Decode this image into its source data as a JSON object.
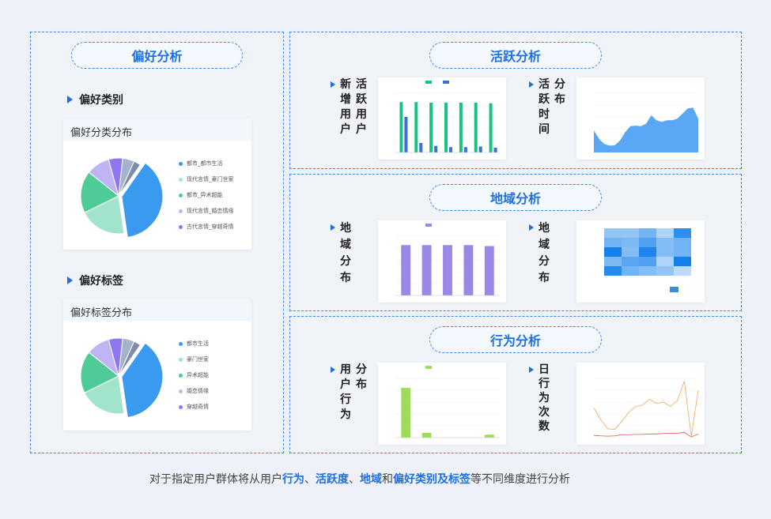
{
  "preference": {
    "title": "偏好分析",
    "category": {
      "section": "偏好类别",
      "card_title": "偏好分类分布",
      "legend": [
        "都市_都市生活",
        "现代言情_豪门世家",
        "都市_异术超能",
        "现代言情_婚恋情缘",
        "古代言情_穿越奇情"
      ]
    },
    "tags": {
      "section": "偏好标签",
      "card_title": "偏好标签分布",
      "legend": [
        "都市生活",
        "豪门世家",
        "异术超能",
        "婚恋情缘",
        "穿越奇情"
      ]
    }
  },
  "activity": {
    "title": "活跃分析",
    "label_a": "新增用户",
    "label_b": "活跃用户",
    "label_c": "活跃时间",
    "label_d": "分布"
  },
  "region": {
    "title": "地域分析",
    "label_a": "地域分布",
    "label_b": "地域分布"
  },
  "behavior": {
    "title": "行为分析",
    "label_a": "用户行为",
    "label_b": "分布",
    "label_c": "日行为次数"
  },
  "footer": {
    "p1": "对于指定用户群体将从用户",
    "h1": "行为",
    "p2": "、",
    "h2": "活跃度",
    "p3": "、",
    "h3": "地域",
    "p4": "和",
    "h4": "偏好类别及标签",
    "p5": "等不同维度进行分析"
  },
  "colors": {
    "accent": "#1e6fe0",
    "pie": [
      "#3a9af0",
      "#a2e3cb",
      "#4fcb97",
      "#c0b4f5",
      "#8e77ef",
      "#a5b2cd",
      "#7f8ea8"
    ]
  },
  "chart_data": [
    {
      "type": "pie",
      "name": "偏好分类分布",
      "values": [
        38,
        20,
        18,
        10,
        6,
        5,
        3
      ]
    },
    {
      "type": "pie",
      "name": "偏好标签分布",
      "values": [
        38,
        20,
        18,
        10,
        6,
        5,
        3
      ]
    },
    {
      "type": "bar",
      "series": [
        {
          "values": [
            85000,
            85000,
            84000,
            84000,
            84000,
            84000,
            83000
          ],
          "color": "#17c47f"
        },
        {
          "values": [
            60000,
            16000,
            11000,
            9000,
            9000,
            10000,
            8000
          ],
          "color": "#3a6fd8"
        }
      ],
      "ylim": [
        0,
        100000
      ]
    },
    {
      "type": "area",
      "values": [
        13000,
        8000,
        5000,
        4000,
        4200,
        7000,
        12000,
        15500,
        15800,
        15500,
        17000,
        22000,
        19000,
        18000,
        19000,
        19000,
        20000,
        23000,
        26000,
        26500,
        20000
      ],
      "ylim": [
        0,
        35000
      ],
      "color": "#5aa7f5"
    },
    {
      "type": "bar",
      "series": [
        {
          "values": [
            25500,
            25500,
            25500,
            25500,
            25000
          ],
          "color": "#9b88e6"
        }
      ],
      "ylim": [
        0,
        30000
      ]
    },
    {
      "type": "heatmap",
      "values": [
        [
          0.3,
          0.3,
          0.45,
          0.15,
          0.75
        ],
        [
          0.45,
          0.4,
          0.6,
          0.35,
          0.45
        ],
        [
          0.9,
          0.35,
          0.85,
          0.35,
          0.45
        ],
        [
          0.4,
          0.55,
          0.6,
          0.15,
          0.9
        ],
        [
          0.8,
          0.45,
          0.35,
          0.3,
          0.1
        ]
      ]
    },
    {
      "type": "bar",
      "series": [
        {
          "values": [
            420000,
            40000,
            0,
            0,
            25000
          ],
          "color": "#9fdc5a"
        }
      ],
      "ylim": [
        0,
        500000
      ]
    },
    {
      "type": "line",
      "series": [
        {
          "values": [
            20000,
            12000,
            6000,
            5500,
            11000,
            17000,
            21000,
            22000,
            26000,
            23000,
            24000,
            21000,
            25000,
            38000,
            1000,
            32000
          ],
          "color": "#f5a55a"
        },
        {
          "values": [
            1500,
            1200,
            1000,
            1200,
            2000,
            2000,
            2200,
            2200,
            2500,
            2500,
            2800,
            3000,
            3000,
            3500,
            500,
            2500
          ],
          "color": "#e8504a"
        }
      ],
      "ylim": [
        0,
        40000
      ]
    }
  ]
}
